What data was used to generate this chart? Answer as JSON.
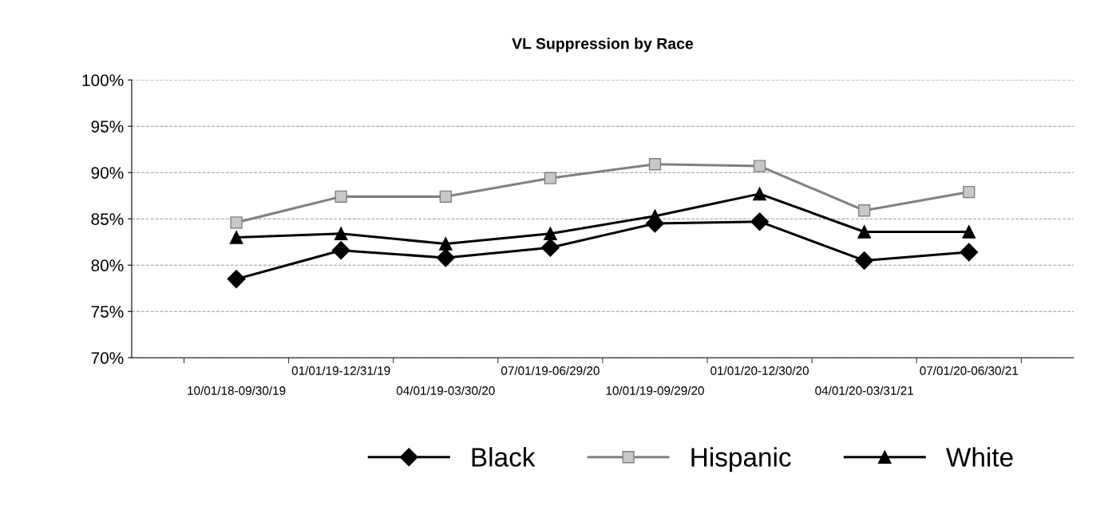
{
  "chart_data": {
    "type": "line",
    "title": "VL Suppression by Race",
    "categories": [
      "10/01/18-09/30/19",
      "01/01/19-12/31/19",
      "04/01/19-03/30/20",
      "07/01/19-06/29/20",
      "10/01/19-09/29/20",
      "01/01/20-12/30/20",
      "04/01/20-03/31/21",
      "07/01/20-06/30/21"
    ],
    "series": [
      {
        "name": "Black",
        "color": "#000000",
        "marker": "diamond",
        "values": [
          78.5,
          81.6,
          80.8,
          81.9,
          84.5,
          84.7,
          80.5,
          81.4
        ]
      },
      {
        "name": "Hispanic",
        "color": "#808080",
        "marker": "square",
        "values": [
          84.6,
          87.4,
          87.4,
          89.4,
          90.9,
          90.7,
          85.9,
          87.9
        ]
      },
      {
        "name": "White",
        "color": "#000000",
        "marker": "triangle",
        "values": [
          83.0,
          83.4,
          82.3,
          83.4,
          85.3,
          87.7,
          83.6,
          83.6
        ]
      }
    ],
    "ylim": [
      70,
      100
    ],
    "yticks": [
      {
        "value": 70,
        "label": "70%"
      },
      {
        "value": 75,
        "label": "75%"
      },
      {
        "value": 80,
        "label": "80%"
      },
      {
        "value": 85,
        "label": "85%"
      },
      {
        "value": 90,
        "label": "90%"
      },
      {
        "value": 95,
        "label": "95%"
      },
      {
        "value": 100,
        "label": "100%"
      }
    ],
    "grid": "y",
    "legend": "bottom",
    "line_style": "solid"
  }
}
